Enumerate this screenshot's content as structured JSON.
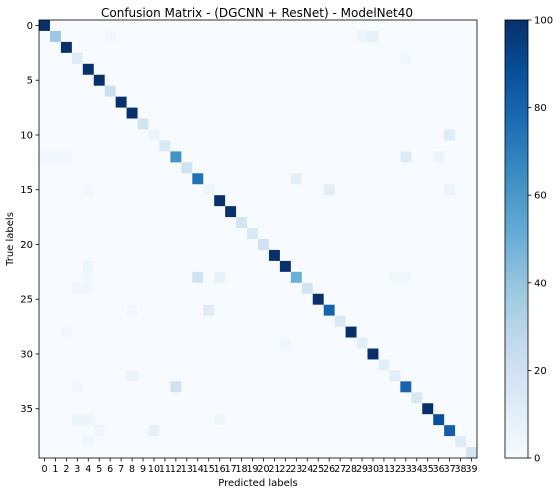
{
  "chart_data": {
    "type": "heatmap",
    "title": "Confusion Matrix - (DGCNN + ResNet) - ModelNet40",
    "xlabel": "Predicted labels",
    "ylabel": "True labels",
    "x_tick_labels": [
      "0",
      "1",
      "2",
      "3",
      "4",
      "5",
      "6",
      "7",
      "8",
      "9",
      "10",
      "11",
      "12",
      "13",
      "14",
      "15",
      "16",
      "17",
      "18",
      "19",
      "20",
      "21",
      "22",
      "23",
      "24",
      "25",
      "26",
      "27",
      "28",
      "29",
      "30",
      "31",
      "32",
      "33",
      "34",
      "35",
      "36",
      "37",
      "38",
      "39"
    ],
    "y_tick_labels": [
      "0",
      "5",
      "10",
      "15",
      "20",
      "25",
      "30",
      "35"
    ],
    "y_tick_values": [
      0,
      5,
      10,
      15,
      20,
      25,
      30,
      35
    ],
    "n": 40,
    "colormap": "Blues",
    "vmin": 0,
    "vmax": 100,
    "colorbar_ticks": [
      0,
      20,
      40,
      60,
      80,
      100
    ],
    "colorbar_tick_labels": [
      "0",
      "20",
      "40",
      "60",
      "80",
      "100"
    ],
    "diagonal": [
      100,
      38,
      100,
      12,
      100,
      100,
      22,
      100,
      100,
      18,
      5,
      15,
      62,
      20,
      75,
      5,
      100,
      100,
      18,
      15,
      20,
      100,
      100,
      50,
      18,
      100,
      80,
      15,
      100,
      10,
      100,
      10,
      10,
      80,
      15,
      100,
      88,
      82,
      12,
      18
    ],
    "off_diagonal": [
      {
        "row": 1,
        "col": 30,
        "value": 8
      },
      {
        "row": 1,
        "col": 29,
        "value": 5
      },
      {
        "row": 1,
        "col": 6,
        "value": 3
      },
      {
        "row": 3,
        "col": 33,
        "value": 3
      },
      {
        "row": 10,
        "col": 37,
        "value": 12
      },
      {
        "row": 12,
        "col": 33,
        "value": 12
      },
      {
        "row": 12,
        "col": 36,
        "value": 6
      },
      {
        "row": 12,
        "col": 0,
        "value": 3
      },
      {
        "row": 12,
        "col": 1,
        "value": 3
      },
      {
        "row": 12,
        "col": 2,
        "value": 3
      },
      {
        "row": 14,
        "col": 23,
        "value": 10
      },
      {
        "row": 15,
        "col": 26,
        "value": 10
      },
      {
        "row": 15,
        "col": 37,
        "value": 6
      },
      {
        "row": 15,
        "col": 4,
        "value": 3
      },
      {
        "row": 22,
        "col": 4,
        "value": 5
      },
      {
        "row": 23,
        "col": 14,
        "value": 20
      },
      {
        "row": 23,
        "col": 16,
        "value": 8
      },
      {
        "row": 23,
        "col": 4,
        "value": 3
      },
      {
        "row": 23,
        "col": 32,
        "value": 3
      },
      {
        "row": 23,
        "col": 33,
        "value": 3
      },
      {
        "row": 26,
        "col": 15,
        "value": 12
      },
      {
        "row": 26,
        "col": 8,
        "value": 3
      },
      {
        "row": 24,
        "col": 3,
        "value": 3
      },
      {
        "row": 24,
        "col": 4,
        "value": 3
      },
      {
        "row": 28,
        "col": 2,
        "value": 3
      },
      {
        "row": 29,
        "col": 22,
        "value": 4
      },
      {
        "row": 32,
        "col": 8,
        "value": 6
      },
      {
        "row": 33,
        "col": 12,
        "value": 20
      },
      {
        "row": 33,
        "col": 3,
        "value": 3
      },
      {
        "row": 37,
        "col": 10,
        "value": 8
      },
      {
        "row": 37,
        "col": 5,
        "value": 4
      },
      {
        "row": 36,
        "col": 3,
        "value": 5
      },
      {
        "row": 36,
        "col": 4,
        "value": 5
      },
      {
        "row": 36,
        "col": 16,
        "value": 4
      },
      {
        "row": 38,
        "col": 4,
        "value": 3
      }
    ]
  }
}
